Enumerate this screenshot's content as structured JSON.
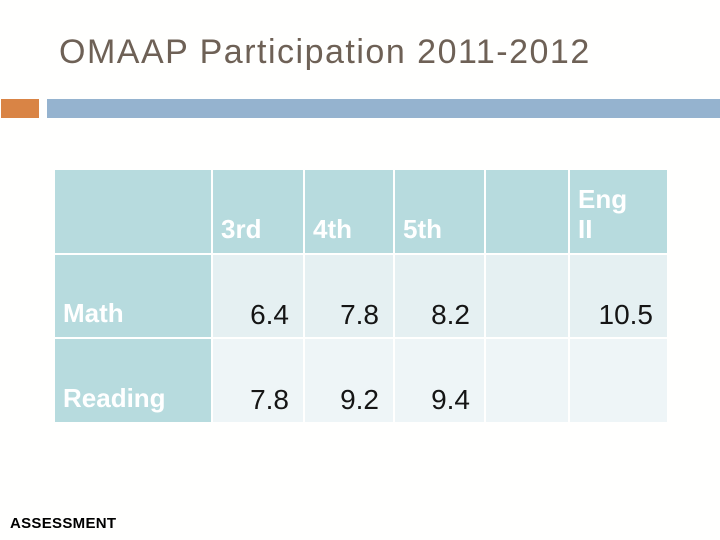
{
  "slide": {
    "title": "OMAAP Participation 2011-2012",
    "footer": "ASSESSMENT"
  },
  "chart_data": {
    "type": "table",
    "title": "OMAAP Participation 2011-2012",
    "columns": [
      "",
      "3rd",
      "4th",
      "5th",
      "",
      "Eng II"
    ],
    "rows": [
      {
        "label": "Math",
        "values": [
          "6.4",
          "7.8",
          "8.2",
          "",
          "10.5"
        ]
      },
      {
        "label": "Reading",
        "values": [
          "7.8",
          "9.2",
          "9.4",
          "",
          ""
        ]
      }
    ]
  },
  "colors": {
    "title_text": "#6e6156",
    "accent_orange": "#d98445",
    "accent_blue": "#95b3cf",
    "table_header_bg": "#b7dbde",
    "row_math_bg": "#e5f0f2",
    "row_reading_bg": "#eef5f7",
    "header_text": "#ffffff",
    "value_text": "#151515"
  }
}
